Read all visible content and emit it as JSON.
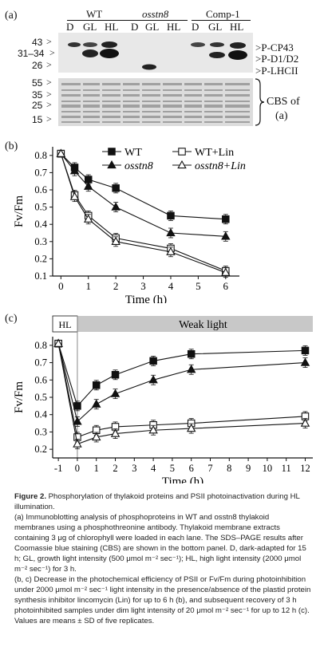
{
  "panel_a": {
    "label": "(a)",
    "groups": [
      "WT",
      "osstn8",
      "Comp-1"
    ],
    "lanes": [
      "D",
      "GL",
      "HL",
      "D",
      "GL",
      "HL",
      "D",
      "GL",
      "HL"
    ],
    "mw_markers_top": [
      "43",
      "31–34",
      "26"
    ],
    "band_labels": [
      "P-CP43",
      "P-D1/D2",
      "P-LHCII"
    ],
    "mw_markers_bottom": [
      "55",
      "35",
      "25",
      "15"
    ],
    "cbs_label": [
      "CBS of",
      "(a)"
    ]
  },
  "chart_data": [
    {
      "type": "line",
      "panel": "(b)",
      "xlabel": "Time (h)",
      "ylabel": "Fv/Fm",
      "x": [
        0,
        0.5,
        1,
        2,
        4,
        6
      ],
      "xlim": [
        -0.3,
        6.5
      ],
      "ylim": [
        0.1,
        0.85
      ],
      "xticks": [
        "0",
        "1",
        "2",
        "3",
        "4",
        "5",
        "6"
      ],
      "yticks": [
        "0.1",
        "0.2",
        "0.3",
        "0.4",
        "0.5",
        "0.6",
        "0.7",
        "0.8"
      ],
      "series": [
        {
          "name": "WT",
          "marker": "filled-square",
          "values": [
            0.81,
            0.73,
            0.66,
            0.61,
            0.45,
            0.43
          ]
        },
        {
          "name": "WT+Lin",
          "marker": "open-square",
          "values": [
            0.81,
            0.57,
            0.45,
            0.32,
            0.26,
            0.13
          ]
        },
        {
          "name": "osstn8",
          "marker": "filled-triangle",
          "values": [
            0.81,
            0.71,
            0.62,
            0.5,
            0.35,
            0.33
          ]
        },
        {
          "name": "osstn8+Lin",
          "marker": "open-triangle",
          "values": [
            0.81,
            0.56,
            0.43,
            0.3,
            0.24,
            0.12
          ]
        }
      ],
      "legend": [
        "WT",
        "WT+Lin",
        "osstn8",
        "osstn8+Lin"
      ]
    },
    {
      "type": "line",
      "panel": "(c)",
      "xlabel": "Time (h)",
      "ylabel": "Fv/Fm",
      "x": [
        -1,
        0,
        1,
        2,
        4,
        6,
        12
      ],
      "ylim": [
        0.15,
        0.85
      ],
      "xticks": [
        "-1",
        "0",
        "1",
        "2",
        "3",
        "4",
        "5",
        "6",
        "7",
        "8",
        "9",
        "10",
        "11",
        "12"
      ],
      "yticks": [
        "0.2",
        "0.3",
        "0.4",
        "0.5",
        "0.6",
        "0.7",
        "0.8"
      ],
      "hl_label": "HL",
      "weak_label": "Weak light",
      "series": [
        {
          "name": "WT",
          "marker": "filled-square",
          "values": [
            0.81,
            0.45,
            0.57,
            0.63,
            0.71,
            0.75,
            0.77
          ]
        },
        {
          "name": "osstn8",
          "marker": "filled-triangle",
          "values": [
            0.81,
            0.36,
            0.46,
            0.52,
            0.6,
            0.66,
            0.7
          ]
        },
        {
          "name": "WT+Lin",
          "marker": "open-square",
          "values": [
            0.81,
            0.27,
            0.31,
            0.33,
            0.34,
            0.35,
            0.39
          ]
        },
        {
          "name": "osstn8+Lin",
          "marker": "open-triangle",
          "values": [
            0.81,
            0.23,
            0.27,
            0.29,
            0.31,
            0.32,
            0.35
          ]
        }
      ]
    }
  ],
  "caption": {
    "title": "Figure 2.",
    "title_text": "Phosphorylation of thylakoid proteins and PSII photoinactivation during HL illumination.",
    "para_a": "(a) Immunoblotting analysis of phosphoproteins in WT and osstn8 thylakoid membranes using a phosphothreonine antibody. Thylakoid membrane extracts containing 3 μg of chlorophyll were loaded in each lane. The SDS–PAGE results after Coomassie blue staining (CBS) are shown in the bottom panel. D, dark-adapted for 15 h; GL, growth light intensity (500 μmol m⁻² sec⁻¹); HL, high light intensity (2000 μmol m⁻² sec⁻¹) for 3 h.",
    "para_bc": "(b, c) Decrease in the photochemical efficiency of PSII or Fv/Fm during photoinhibition under 2000 μmol m⁻² sec⁻¹ light intensity in the presence/absence of the plastid protein synthesis inhibitor lincomycin (Lin) for up to 6 h (b), and subsequent recovery of 3 h photoinhibited samples under dim light intensity of 20 μmol m⁻² sec⁻¹ for up to 12 h (c). Values are means ± SD of five replicates."
  }
}
